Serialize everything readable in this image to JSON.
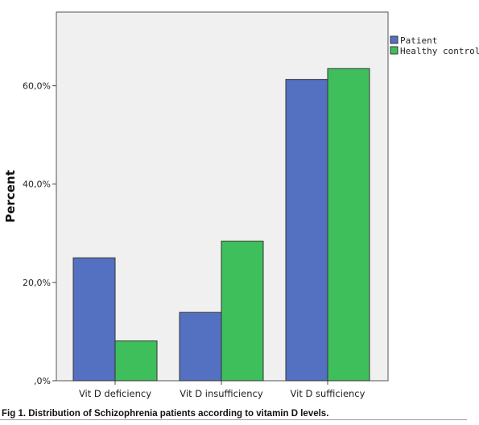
{
  "chart_data": {
    "type": "bar",
    "title": "",
    "xlabel": "",
    "ylabel": "Percent",
    "ylim": [
      0,
      75
    ],
    "yticks": [
      0,
      20,
      40,
      60
    ],
    "ytick_labels": [
      ",0%",
      "20,0%",
      "40,0%",
      "60,0%"
    ],
    "categories": [
      "Vit D deficiency",
      "Vit D insufficiency",
      "Vit D sufficiency"
    ],
    "series": [
      {
        "name": "Patient",
        "color": "#5470c1",
        "values": [
          25.0,
          13.9,
          61.3
        ]
      },
      {
        "name": "Healthy control",
        "color": "#3fbf5c",
        "values": [
          8.1,
          28.4,
          63.5
        ]
      }
    ],
    "legend": "top-right",
    "grid": false,
    "plot_background": "#f0f0f0"
  },
  "caption": "Fig 1. Distribution of Schizophrenia patients according to vitamin D levels."
}
